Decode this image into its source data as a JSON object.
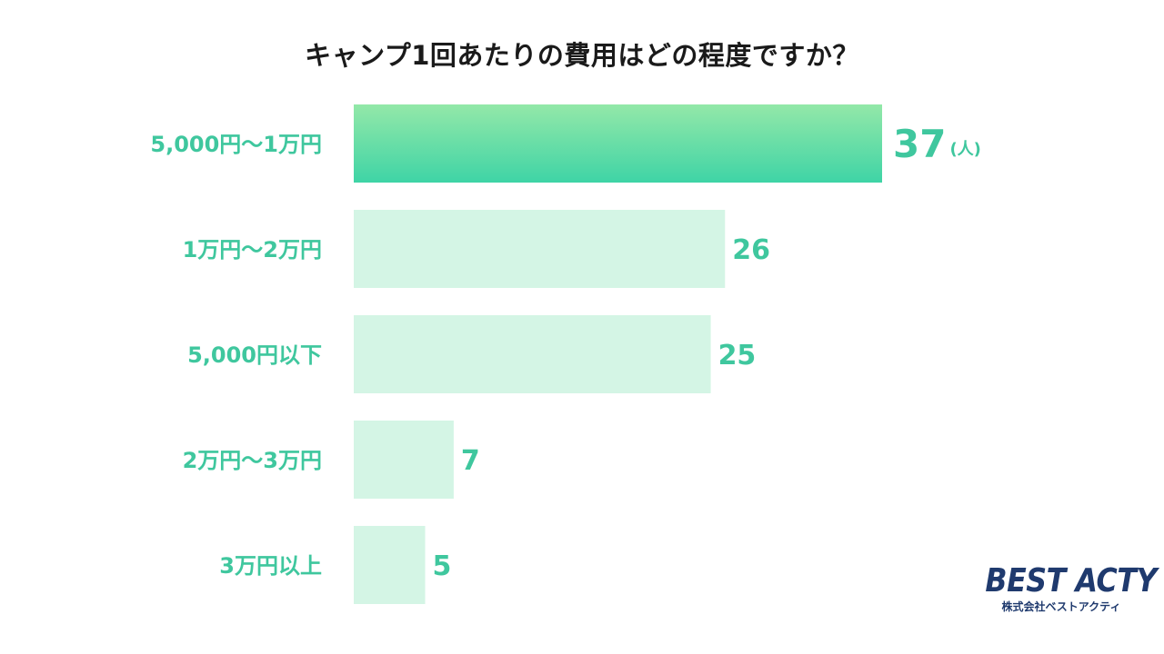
{
  "colors": {
    "highlight_top": "#93e8a8",
    "highlight_bottom": "#3fd4a6",
    "bar_light": "#d4f5e5",
    "label": "#3fc79e",
    "title": "#1a1a1a",
    "logo": "#1f3a6e"
  },
  "chart_data": {
    "type": "bar",
    "orientation": "horizontal",
    "title": "キャンプ1回あたりの費用はどの程度ですか？",
    "categories": [
      "5,000円～1万円",
      "1万円～2万円",
      "5,000円以下",
      "2万円～3万円",
      "3万円以上"
    ],
    "values": [
      37,
      26,
      25,
      7,
      5
    ],
    "value_labels": [
      "37",
      "26",
      "25",
      "7",
      "5"
    ],
    "unit": "(人)",
    "highlight_index": 0,
    "xlim": [
      0,
      37
    ],
    "grid": false,
    "legend": "none"
  },
  "logo": {
    "name": "BEST ACTY",
    "sub": "株式会社ベストアクティ"
  }
}
